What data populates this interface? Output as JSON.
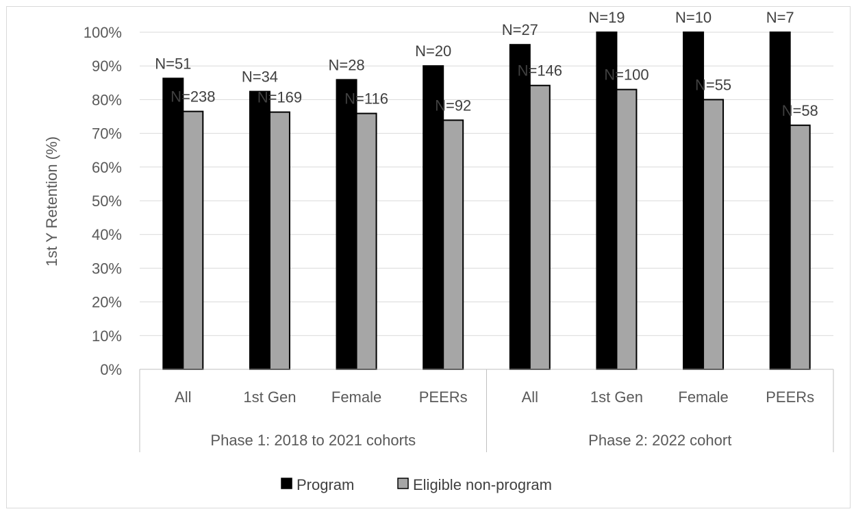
{
  "chart_data": {
    "type": "bar",
    "title": "",
    "ylabel": "1st Y Retention (%)",
    "xlabel": "",
    "ylim": [
      0,
      100
    ],
    "yticks": [
      "0%",
      "10%",
      "20%",
      "30%",
      "40%",
      "50%",
      "60%",
      "70%",
      "80%",
      "90%",
      "100%"
    ],
    "grid": true,
    "legend_position": "bottom",
    "groups": [
      {
        "label": "Phase 1: 2018 to 2021 cohorts",
        "categories": [
          "All",
          "1st Gen",
          "Female",
          "PEERs"
        ]
      },
      {
        "label": "Phase 2: 2022 cohort",
        "categories": [
          "All",
          "1st Gen",
          "Female",
          "PEERs"
        ]
      }
    ],
    "categories": [
      "All",
      "1st Gen",
      "Female",
      "PEERs",
      "All",
      "1st Gen",
      "Female",
      "PEERs"
    ],
    "series": [
      {
        "name": "Program",
        "color": "#000000",
        "values": [
          86.3,
          82.4,
          85.9,
          90.0,
          96.3,
          100,
          100,
          100
        ],
        "labels": [
          "N=51",
          "N=34",
          "N=28",
          "N=20",
          "N=27",
          "N=19",
          "N=10",
          "N=7"
        ]
      },
      {
        "name": "Eligible non-program",
        "color": "#a6a6a6",
        "values": [
          76.5,
          76.3,
          75.9,
          73.9,
          84.2,
          83.0,
          80.0,
          72.4
        ],
        "labels": [
          "N=238",
          "N=169",
          "N=116",
          "N=92",
          "N=146",
          "N=100",
          "N=55",
          "N=58"
        ]
      }
    ]
  }
}
